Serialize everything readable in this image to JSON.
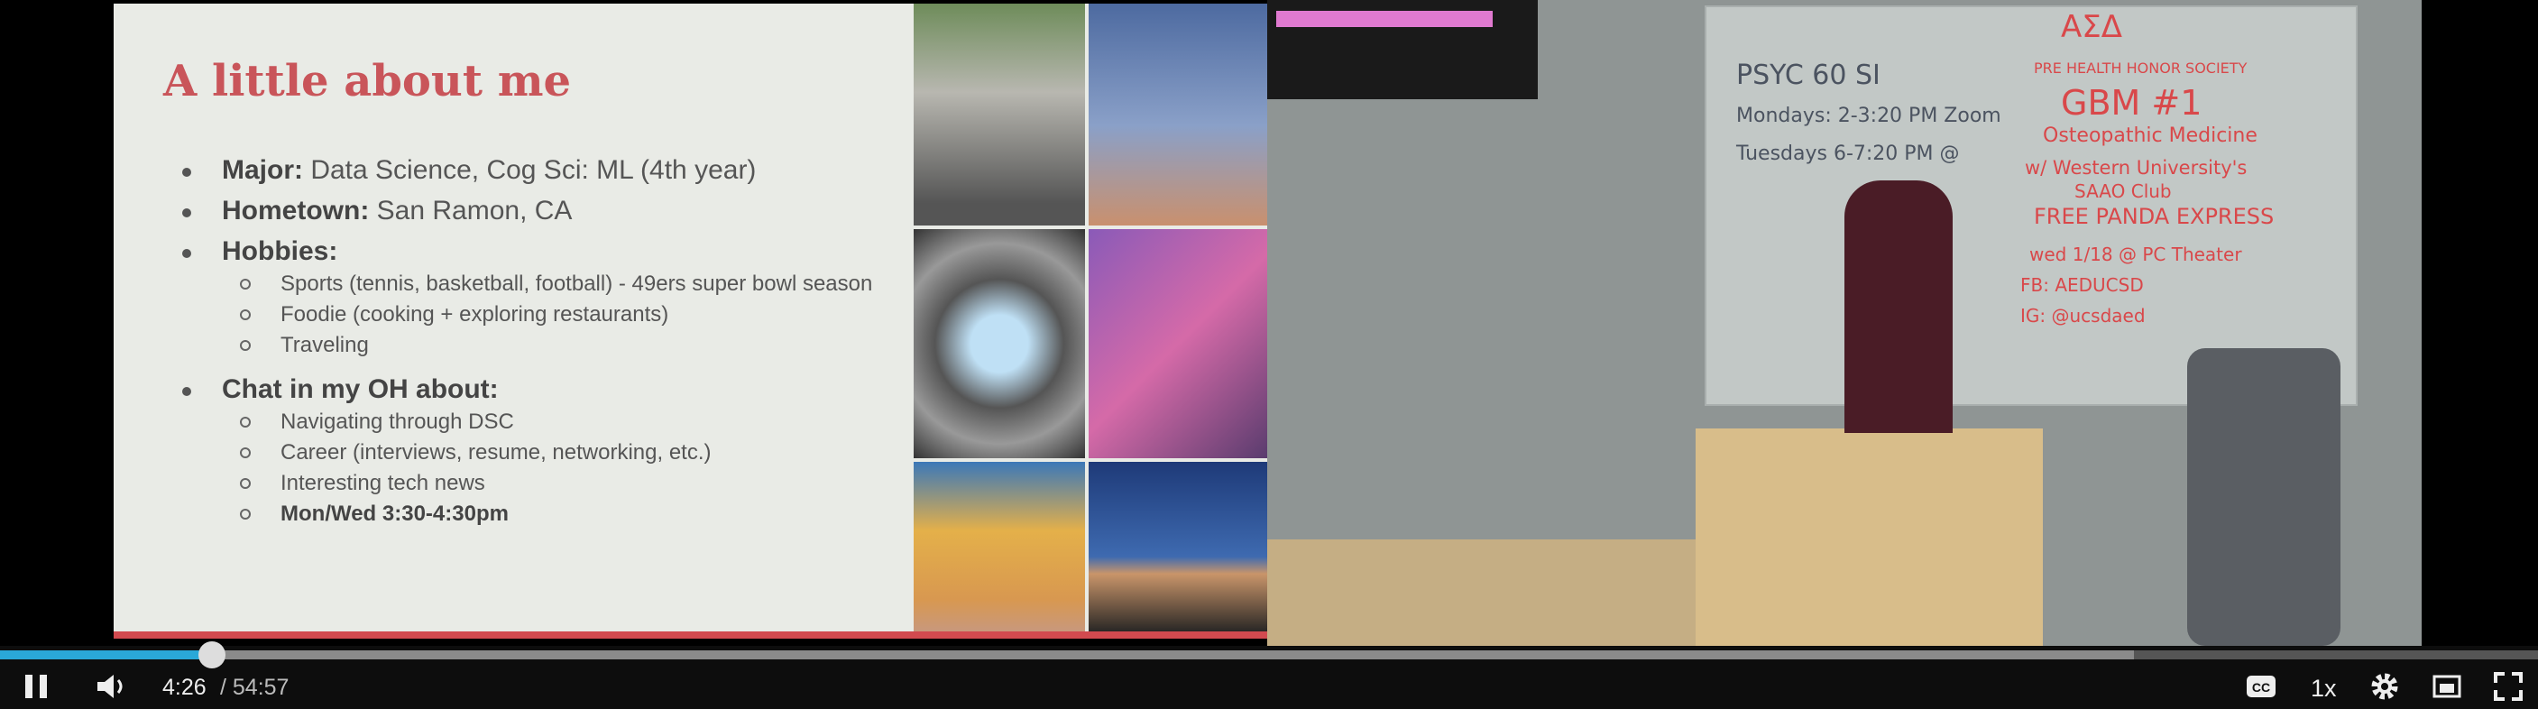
{
  "slide": {
    "title": "A little about me",
    "items": [
      {
        "label": "Major:",
        "text": " Data Science, Cog Sci: ML (4th year)",
        "subitems": []
      },
      {
        "label": "Hometown:",
        "text": " San Ramon, CA",
        "subitems": []
      },
      {
        "label": "Hobbies:",
        "subitems": [
          "Sports (tennis, basketball, football) - 49ers super bowl season",
          "Foodie (cooking + exploring restaurants)",
          "Traveling"
        ]
      },
      {
        "label": "Chat in my OH about:",
        "subitems": [
          "Navigating through DSC",
          "Career (interviews, resume, networking, etc.)",
          "Interesting tech news",
          "Mon/Wed 3:30-4:30pm"
        ]
      }
    ]
  },
  "whiteboard": {
    "left": [
      "PSYC 60 SI",
      "Mondays: 2-3:20 PM Zoom",
      "Tuesdays 6-7:20 PM @"
    ],
    "right": [
      "ΑΣΔ",
      "PRE HEALTH HONOR SOCIETY",
      "GBM #1",
      "Osteopathic Medicine",
      "w/ Western University's",
      "SAAO Club",
      "FREE PANDA EXPRESS",
      "wed 1/18 @ PC Theater",
      "FB: AEDUCSD",
      "IG: @ucsdaed"
    ]
  },
  "player": {
    "current_time": "4:26",
    "duration": "/ 54:57",
    "speed": "1x"
  }
}
